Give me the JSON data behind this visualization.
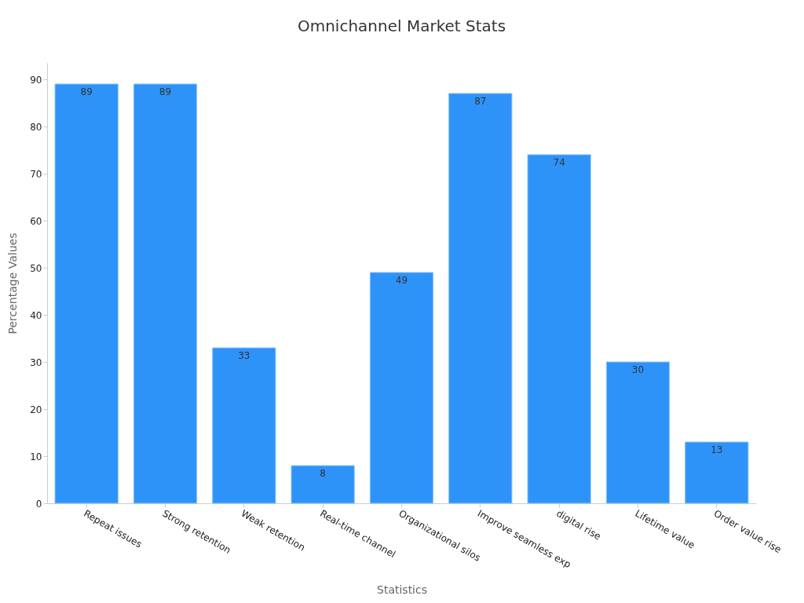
{
  "chart_data": {
    "type": "bar",
    "title": "Omnichannel Market Stats",
    "xlabel": "Statistics",
    "ylabel": "Percentage Values",
    "categories": [
      "Repeat issues",
      "Strong retention",
      "Weak retention",
      "Real-time channel",
      "Organizational silos",
      "Improve seamless exp",
      "digital rise",
      "Lifetime value",
      "Order value rise"
    ],
    "values": [
      89,
      89,
      33,
      8,
      49,
      87,
      74,
      30,
      13
    ],
    "color": "#2e93f9",
    "ylim": [
      0,
      93.5
    ],
    "yticks": [
      0,
      10,
      20,
      30,
      40,
      50,
      60,
      70,
      80,
      90
    ],
    "grid": false,
    "data_labels": true
  }
}
